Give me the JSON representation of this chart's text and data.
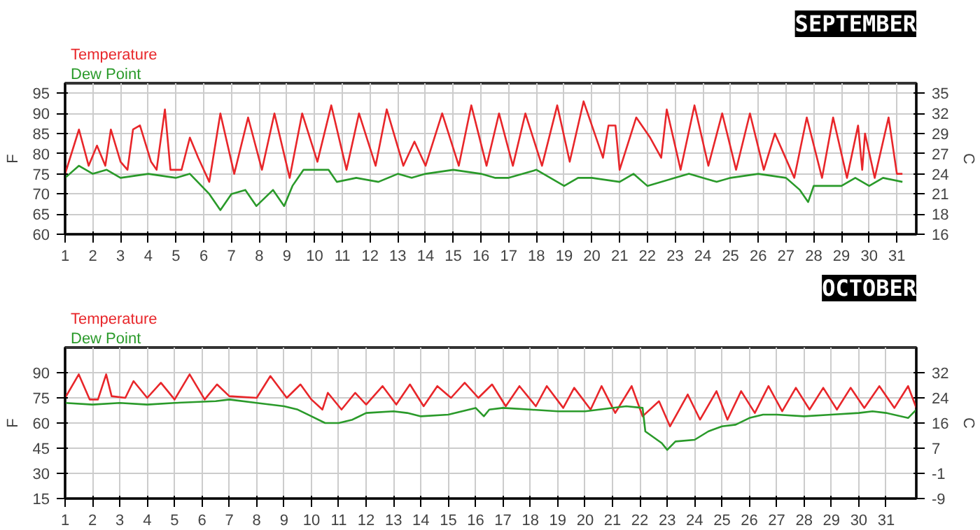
{
  "chart_data": [
    {
      "type": "line",
      "title": "SEPTEMBER",
      "ylabel": "F",
      "y2label": "C",
      "legend": "top left",
      "grid": true,
      "xlim": [
        1,
        31.7
      ],
      "xticks": [
        1,
        2,
        3,
        4,
        5,
        6,
        7,
        8,
        9,
        10,
        11,
        12,
        13,
        14,
        15,
        16,
        17,
        18,
        19,
        20,
        21,
        22,
        23,
        24,
        25,
        26,
        27,
        28,
        29,
        30,
        31
      ],
      "ylim": [
        60,
        97.5
      ],
      "yticks": [
        60,
        65,
        70,
        75,
        80,
        85,
        90,
        95
      ],
      "y2lim": [
        15.56,
        36.39
      ],
      "y2ticks": [
        {
          "value": 15.56,
          "label": "16"
        },
        {
          "value": 18.33,
          "label": "18"
        },
        {
          "value": 21.11,
          "label": "21"
        },
        {
          "value": 23.89,
          "label": "24"
        },
        {
          "value": 26.67,
          "label": "27"
        },
        {
          "value": 29.44,
          "label": "29"
        },
        {
          "value": 32.22,
          "label": "32"
        },
        {
          "value": 35,
          "label": "35"
        }
      ],
      "series": [
        {
          "name": "Temperature",
          "color": "#e8262a",
          "x": [
            1.0,
            1.5,
            1.85,
            2.15,
            2.45,
            2.65,
            3.0,
            3.25,
            3.45,
            3.7,
            4.1,
            4.3,
            4.6,
            4.8,
            5.2,
            5.5,
            5.8,
            6.2,
            6.6,
            7.1,
            7.6,
            8.1,
            8.55,
            9.1,
            9.55,
            10.1,
            10.6,
            11.15,
            11.6,
            12.2,
            12.6,
            13.2,
            13.6,
            14.0,
            14.6,
            15.2,
            15.65,
            16.2,
            16.65,
            17.15,
            17.6,
            18.2,
            18.75,
            19.2,
            19.7,
            20.4,
            20.6,
            20.85,
            21.0,
            21.6,
            22.1,
            22.5,
            22.7,
            23.2,
            23.7,
            24.2,
            24.7,
            25.2,
            25.7,
            26.2,
            26.6,
            27.3,
            27.75,
            28.3,
            28.7,
            29.2,
            29.6,
            29.75,
            29.85,
            30.2,
            30.7,
            31.0,
            31.2
          ],
          "values": [
            75,
            86,
            77,
            82,
            77,
            86,
            78,
            76,
            86,
            87,
            78,
            76,
            91,
            76,
            76,
            84,
            79,
            73,
            90,
            75,
            89,
            76,
            90,
            74,
            90,
            78,
            92,
            76,
            90,
            77,
            91,
            77,
            83,
            77,
            90,
            77,
            92,
            77,
            90,
            77,
            90,
            77,
            92,
            78,
            93,
            79,
            87,
            87,
            76,
            89,
            84,
            79,
            91,
            76,
            92,
            77,
            90,
            76,
            90,
            76,
            85,
            74,
            89,
            74,
            89,
            74,
            87,
            76,
            85,
            74,
            89,
            75,
            75
          ]
        },
        {
          "name": "Dew Point",
          "color": "#2a9a2a",
          "x": [
            1.0,
            1.5,
            2.0,
            2.5,
            3.0,
            4.0,
            5.0,
            5.5,
            6.2,
            6.6,
            7.0,
            7.5,
            7.9,
            8.2,
            8.5,
            8.9,
            9.2,
            9.6,
            10.5,
            10.8,
            11.5,
            12.3,
            13.0,
            13.5,
            14.0,
            15.0,
            16.0,
            16.5,
            17.0,
            18.0,
            19.0,
            19.5,
            20.0,
            21.0,
            21.5,
            22.0,
            23.0,
            23.5,
            24.5,
            25.0,
            26.0,
            27.0,
            27.5,
            27.8,
            28.0,
            29.0,
            29.5,
            30.0,
            30.5,
            31.2
          ],
          "values": [
            74,
            77,
            75,
            76,
            74,
            75,
            74,
            75,
            70,
            66,
            70,
            71,
            67,
            69,
            71,
            67,
            72,
            76,
            76,
            73,
            74,
            73,
            75,
            74,
            75,
            76,
            75,
            74,
            74,
            76,
            72,
            74,
            74,
            73,
            75,
            72,
            74,
            75,
            73,
            74,
            75,
            74,
            71,
            68,
            72,
            72,
            74,
            72,
            74,
            73
          ]
        }
      ]
    },
    {
      "type": "line",
      "title": "OCTOBER",
      "ylabel": "F",
      "y2label": "C",
      "legend": "top left",
      "grid": true,
      "xlim": [
        1,
        32.1
      ],
      "xticks": [
        1,
        2,
        3,
        4,
        5,
        6,
        7,
        8,
        9,
        10,
        11,
        12,
        13,
        14,
        15,
        16,
        17,
        18,
        19,
        20,
        21,
        22,
        23,
        24,
        25,
        26,
        27,
        28,
        29,
        30,
        31
      ],
      "ylim": [
        15,
        105
      ],
      "yticks": [
        15,
        30,
        45,
        60,
        75,
        90
      ],
      "y2lim": [
        -9.44,
        40.56
      ],
      "y2ticks": [
        {
          "value": -9.44,
          "label": "-9"
        },
        {
          "value": -1.11,
          "label": "-1"
        },
        {
          "value": 7.22,
          "label": "7"
        },
        {
          "value": 15.56,
          "label": "16"
        },
        {
          "value": 23.89,
          "label": "24"
        },
        {
          "value": 32.22,
          "label": "32"
        }
      ],
      "series": [
        {
          "name": "Temperature",
          "color": "#e8262a",
          "x": [
            1.0,
            1.5,
            1.9,
            2.2,
            2.5,
            2.7,
            3.2,
            3.5,
            4.0,
            4.5,
            5.0,
            5.55,
            6.1,
            6.55,
            7.0,
            8.0,
            8.5,
            9.1,
            9.6,
            10.0,
            10.4,
            10.6,
            11.1,
            11.6,
            12.0,
            12.6,
            13.1,
            13.6,
            14.1,
            14.6,
            15.1,
            15.6,
            16.1,
            16.6,
            17.1,
            17.6,
            18.2,
            18.6,
            19.2,
            19.6,
            20.2,
            20.6,
            21.1,
            21.7,
            22.1,
            22.7,
            23.1,
            23.75,
            24.2,
            24.8,
            25.2,
            25.7,
            26.2,
            26.7,
            27.2,
            27.7,
            28.2,
            28.7,
            29.2,
            29.7,
            30.2,
            30.75,
            31.3,
            31.8,
            32.1
          ],
          "values": [
            75,
            89,
            74,
            74,
            89,
            76,
            75,
            85,
            75,
            84,
            74,
            89,
            74,
            83,
            76,
            75,
            88,
            75,
            83,
            74,
            68,
            78,
            68,
            78,
            71,
            82,
            71,
            83,
            70,
            82,
            75,
            84,
            75,
            83,
            70,
            82,
            70,
            82,
            69,
            81,
            68,
            82,
            66,
            82,
            64,
            73,
            58,
            77,
            62,
            79,
            62,
            79,
            66,
            82,
            67,
            81,
            68,
            81,
            68,
            81,
            69,
            82,
            69,
            82,
            69
          ]
        },
        {
          "name": "Dew Point",
          "color": "#2a9a2a",
          "x": [
            1.0,
            2.0,
            3.0,
            4.0,
            5.0,
            6.5,
            7.0,
            8.0,
            9.0,
            9.5,
            10.0,
            10.5,
            11.0,
            11.5,
            12.0,
            13.0,
            13.5,
            14.0,
            15.0,
            15.5,
            16.0,
            16.3,
            16.5,
            17.0,
            18.0,
            19.0,
            20.0,
            21.5,
            22.1,
            22.2,
            22.8,
            23.0,
            23.3,
            24.0,
            24.5,
            25.0,
            25.5,
            26.0,
            26.5,
            27.0,
            28.0,
            29.0,
            30.0,
            30.5,
            31.0,
            31.8,
            32.1
          ],
          "values": [
            72,
            71,
            72,
            71,
            72,
            73,
            74,
            72,
            70,
            68,
            64,
            60,
            60,
            62,
            66,
            67,
            66,
            64,
            65,
            67,
            69,
            64,
            68,
            69,
            68,
            67,
            67,
            70,
            69,
            55,
            48,
            44,
            49,
            50,
            55,
            58,
            59,
            63,
            65,
            65,
            64,
            65,
            66,
            67,
            66,
            63,
            68
          ]
        }
      ]
    }
  ]
}
